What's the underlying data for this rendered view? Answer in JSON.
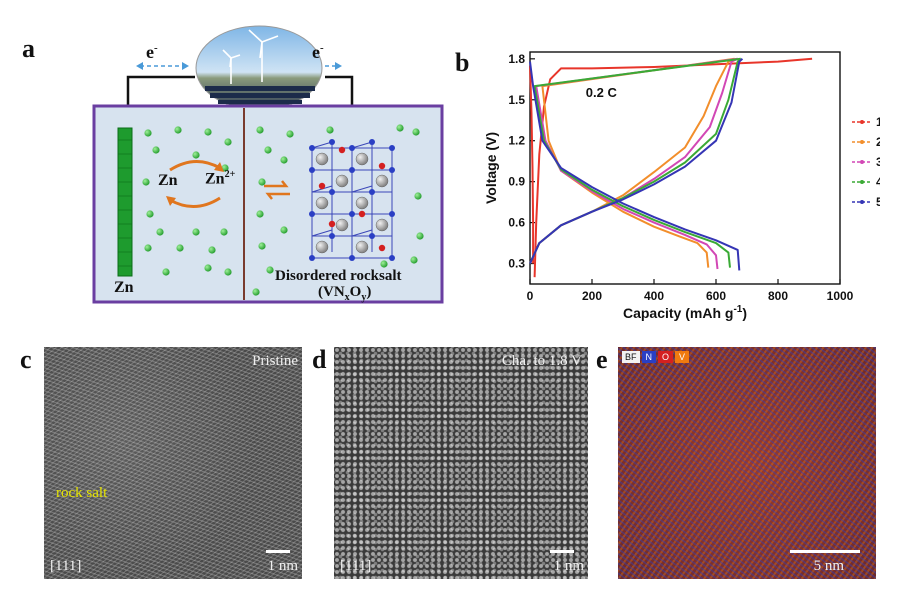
{
  "panel_a": {
    "letter": "a",
    "electron_left": "e",
    "electron_right": "e",
    "electron_sup": "-",
    "zn_ion": "Zn",
    "zn2_ion": "Zn",
    "zn2_sup": "2+",
    "zn_electrode": "Zn",
    "cathode_name": "Disordered rocksalt",
    "cathode_formula_open": "(VN",
    "cathode_sub_x": "x",
    "cathode_mid": "O",
    "cathode_sub_y": "y",
    "cathode_formula_close": ")",
    "colors": {
      "frame": "#6a3ea1",
      "electrolyte": "#d7e3ef",
      "electrode": "#1e9b2e",
      "ion": "#3fbf3f",
      "arrow": "#e0761e",
      "separator": "#7a3b2e"
    }
  },
  "panel_b": {
    "letter": "b",
    "rate_label": "0.2 C"
  },
  "panel_c": {
    "letter": "c",
    "label_top": "Pristine",
    "label_mid": "rock salt",
    "label_zone": "[111]",
    "scale": "1 nm"
  },
  "panel_d": {
    "letter": "d",
    "label_top": "Cha. to 1.8 V",
    "label_zone": "[111]",
    "scale": "1 nm"
  },
  "panel_e": {
    "letter": "e",
    "legend": [
      "BF",
      "N",
      "O",
      "V"
    ],
    "legend_colors": [
      "#f2f2f2",
      "#2a3fc4",
      "#d42020",
      "#f07a10"
    ],
    "scale": "5 nm"
  },
  "chart_data": {
    "type": "line",
    "xlabel": "Capacity (mAh g",
    "xlabel_sup": "-1",
    "xlabel_close": ")",
    "ylabel": "Voltage (V)",
    "xlim": [
      0,
      1000
    ],
    "ylim": [
      0.15,
      1.85
    ],
    "xticks": [
      0,
      200,
      400,
      600,
      800,
      1000
    ],
    "yticks": [
      0.3,
      0.6,
      0.9,
      1.2,
      1.5,
      1.8
    ],
    "grid": false,
    "legend_position": "right",
    "series": [
      {
        "name": "1st",
        "color": "#e8352a",
        "charge": [
          [
            15,
            0.2
          ],
          [
            20,
            0.6
          ],
          [
            30,
            1.1
          ],
          [
            45,
            1.45
          ],
          [
            65,
            1.65
          ],
          [
            100,
            1.73
          ],
          [
            200,
            1.73
          ],
          [
            400,
            1.74
          ],
          [
            600,
            1.76
          ],
          [
            800,
            1.78
          ],
          [
            910,
            1.8
          ]
        ],
        "discharge": [
          [
            0,
            1.75
          ],
          [
            5,
            1.4
          ],
          [
            8,
            1.0
          ],
          [
            10,
            0.6
          ],
          [
            10,
            0.3
          ]
        ]
      },
      {
        "name": "2nd",
        "color": "#f28e2b",
        "charge": [
          [
            0,
            0.3
          ],
          [
            30,
            0.45
          ],
          [
            100,
            0.58
          ],
          [
            200,
            0.68
          ],
          [
            300,
            0.8
          ],
          [
            400,
            0.97
          ],
          [
            500,
            1.15
          ],
          [
            560,
            1.38
          ],
          [
            600,
            1.6
          ],
          [
            640,
            1.78
          ],
          [
            660,
            1.8
          ]
        ],
        "discharge": [
          [
            660,
            1.8
          ],
          [
            40,
            1.6
          ],
          [
            60,
            1.2
          ],
          [
            100,
            0.98
          ],
          [
            200,
            0.82
          ],
          [
            300,
            0.68
          ],
          [
            400,
            0.57
          ],
          [
            480,
            0.5
          ],
          [
            540,
            0.45
          ],
          [
            570,
            0.38
          ],
          [
            575,
            0.27
          ]
        ]
      },
      {
        "name": "3rd",
        "color": "#d247b5",
        "charge": [
          [
            0,
            0.3
          ],
          [
            30,
            0.45
          ],
          [
            100,
            0.58
          ],
          [
            200,
            0.68
          ],
          [
            300,
            0.78
          ],
          [
            400,
            0.92
          ],
          [
            500,
            1.08
          ],
          [
            580,
            1.3
          ],
          [
            620,
            1.55
          ],
          [
            650,
            1.78
          ],
          [
            670,
            1.8
          ]
        ],
        "discharge": [
          [
            670,
            1.8
          ],
          [
            20,
            1.6
          ],
          [
            50,
            1.2
          ],
          [
            100,
            0.98
          ],
          [
            200,
            0.83
          ],
          [
            300,
            0.7
          ],
          [
            400,
            0.6
          ],
          [
            500,
            0.51
          ],
          [
            570,
            0.44
          ],
          [
            600,
            0.36
          ],
          [
            605,
            0.26
          ]
        ]
      },
      {
        "name": "4th",
        "color": "#3aaa35",
        "charge": [
          [
            0,
            0.3
          ],
          [
            30,
            0.45
          ],
          [
            100,
            0.58
          ],
          [
            200,
            0.68
          ],
          [
            300,
            0.78
          ],
          [
            400,
            0.9
          ],
          [
            500,
            1.04
          ],
          [
            600,
            1.25
          ],
          [
            640,
            1.5
          ],
          [
            670,
            1.78
          ],
          [
            680,
            1.8
          ]
        ],
        "discharge": [
          [
            680,
            1.8
          ],
          [
            15,
            1.6
          ],
          [
            45,
            1.2
          ],
          [
            100,
            0.99
          ],
          [
            200,
            0.84
          ],
          [
            300,
            0.72
          ],
          [
            400,
            0.62
          ],
          [
            500,
            0.53
          ],
          [
            600,
            0.45
          ],
          [
            640,
            0.38
          ],
          [
            645,
            0.27
          ]
        ]
      },
      {
        "name": "5th",
        "color": "#3535b5",
        "charge": [
          [
            0,
            0.3
          ],
          [
            30,
            0.45
          ],
          [
            100,
            0.58
          ],
          [
            200,
            0.68
          ],
          [
            300,
            0.77
          ],
          [
            400,
            0.88
          ],
          [
            500,
            1.01
          ],
          [
            600,
            1.2
          ],
          [
            650,
            1.48
          ],
          [
            675,
            1.78
          ],
          [
            685,
            1.8
          ]
        ],
        "discharge": [
          [
            0,
            1.78
          ],
          [
            10,
            1.6
          ],
          [
            40,
            1.2
          ],
          [
            100,
            1.0
          ],
          [
            200,
            0.86
          ],
          [
            300,
            0.74
          ],
          [
            400,
            0.64
          ],
          [
            500,
            0.55
          ],
          [
            600,
            0.47
          ],
          [
            670,
            0.4
          ],
          [
            675,
            0.25
          ]
        ]
      }
    ]
  }
}
